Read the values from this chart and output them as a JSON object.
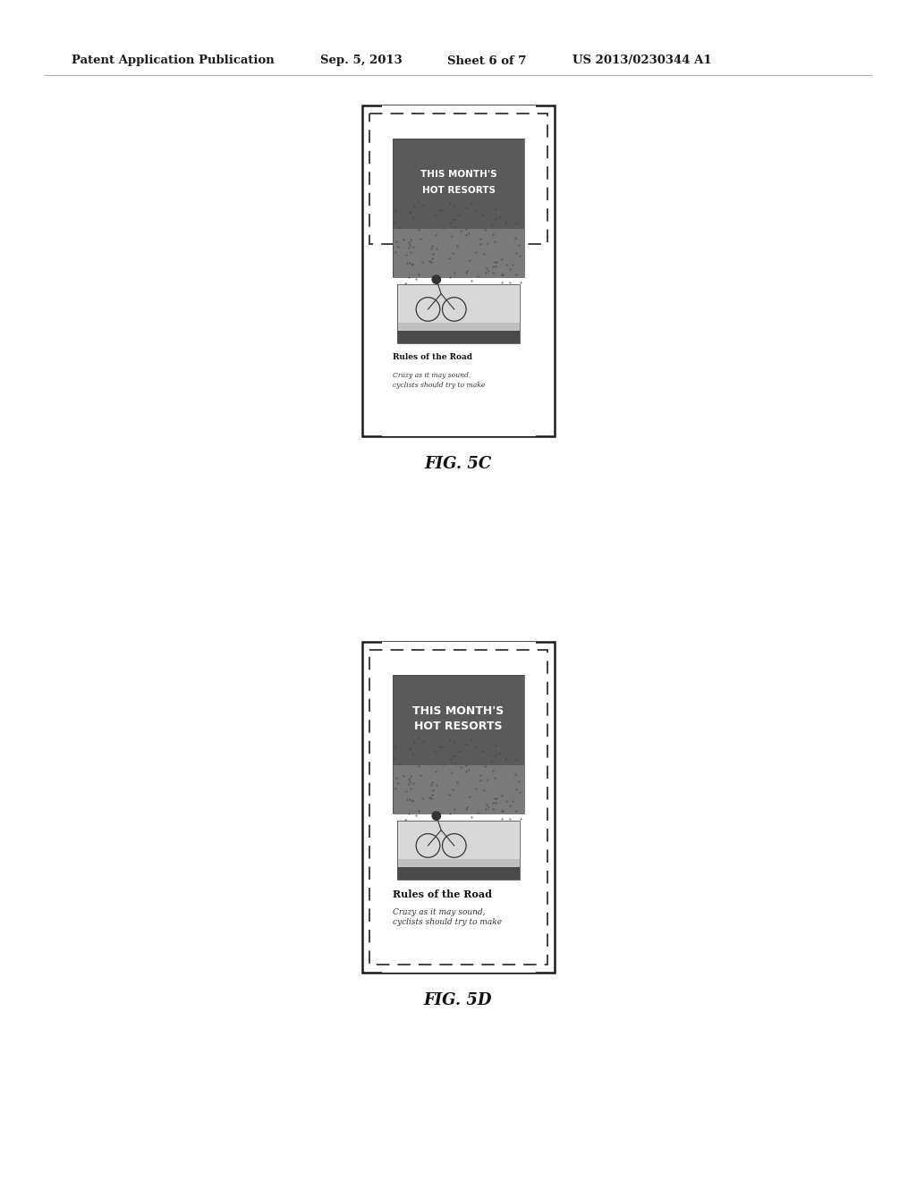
{
  "bg_color": "#ffffff",
  "header_text": "Patent Application Publication",
  "header_date": "Sep. 5, 2013",
  "header_sheet": "Sheet 6 of 7",
  "header_patent": "US 2013/0230344 A1",
  "fig5c_label": "FIG. 5C",
  "fig5d_label": "FIG. 5D",
  "title_text_line1": "THIS MONTH'S",
  "title_text_line2": "HOT RESORTS",
  "article_title": "Rules of the Road",
  "article_body_1": "Crazy as it may sound,",
  "article_body_2": "cyclists should try to make"
}
